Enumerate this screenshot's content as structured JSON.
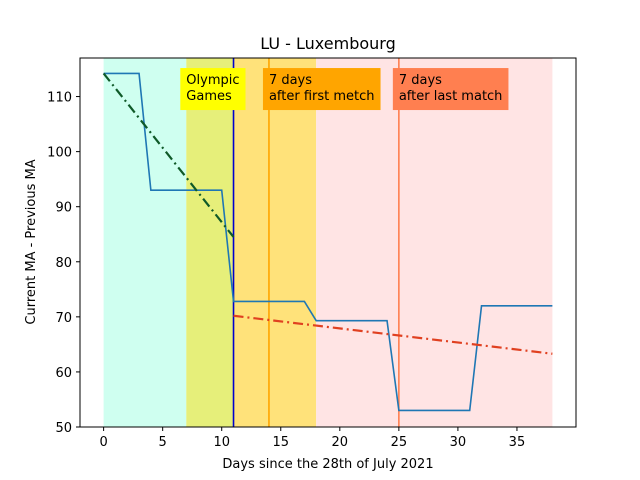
{
  "chart_data": {
    "type": "line",
    "title": "LU - Luxembourg",
    "xlabel": "Days since the 28th of July 2021",
    "ylabel": "Current MA - Previous MA",
    "xlim": [
      -2,
      40
    ],
    "ylim": [
      50,
      117
    ],
    "xticks": [
      0,
      5,
      10,
      15,
      20,
      25,
      30,
      35
    ],
    "yticks": [
      50,
      60,
      70,
      80,
      90,
      100,
      110
    ],
    "grid": false,
    "spans": [
      {
        "from": 0,
        "to": 7,
        "color": "#cffff0"
      },
      {
        "from": 7,
        "to": 11,
        "color": "#e6ef7a"
      },
      {
        "from": 11,
        "to": 18,
        "color": "#ffe27a"
      },
      {
        "from": 18,
        "to": 38,
        "color": "#ffe4e4"
      }
    ],
    "vlines": [
      {
        "x": 11,
        "color": "#0000cc"
      },
      {
        "x": 14,
        "color": "#ffa500"
      },
      {
        "x": 25,
        "color": "#ff7f50"
      }
    ],
    "series": [
      {
        "color": "#1f77b4",
        "style": "solid",
        "x": [
          0,
          3,
          4,
          10,
          11,
          17,
          18,
          24,
          25,
          31,
          32,
          38
        ],
        "y": [
          114.2,
          114.2,
          93,
          93,
          72.8,
          72.8,
          69.3,
          69.3,
          53,
          53,
          72,
          72
        ]
      },
      {
        "color": "#0f5a28",
        "style": "dashdot",
        "x": [
          0,
          11
        ],
        "y": [
          114.2,
          84.5
        ]
      },
      {
        "color": "#e04020",
        "style": "dashdot",
        "x": [
          11,
          38
        ],
        "y": [
          70.2,
          63.3
        ]
      }
    ],
    "annotations": [
      {
        "lines": [
          "Olympic",
          "Games"
        ],
        "x": 7,
        "y": 111,
        "bg": "#ffff00"
      },
      {
        "lines": [
          "7 days",
          "after first metch"
        ],
        "x": 14,
        "y": 111,
        "bg": "#ffa500"
      },
      {
        "lines": [
          "7 days",
          "after last match"
        ],
        "x": 25,
        "y": 111,
        "bg": "#ff7f50"
      }
    ]
  }
}
